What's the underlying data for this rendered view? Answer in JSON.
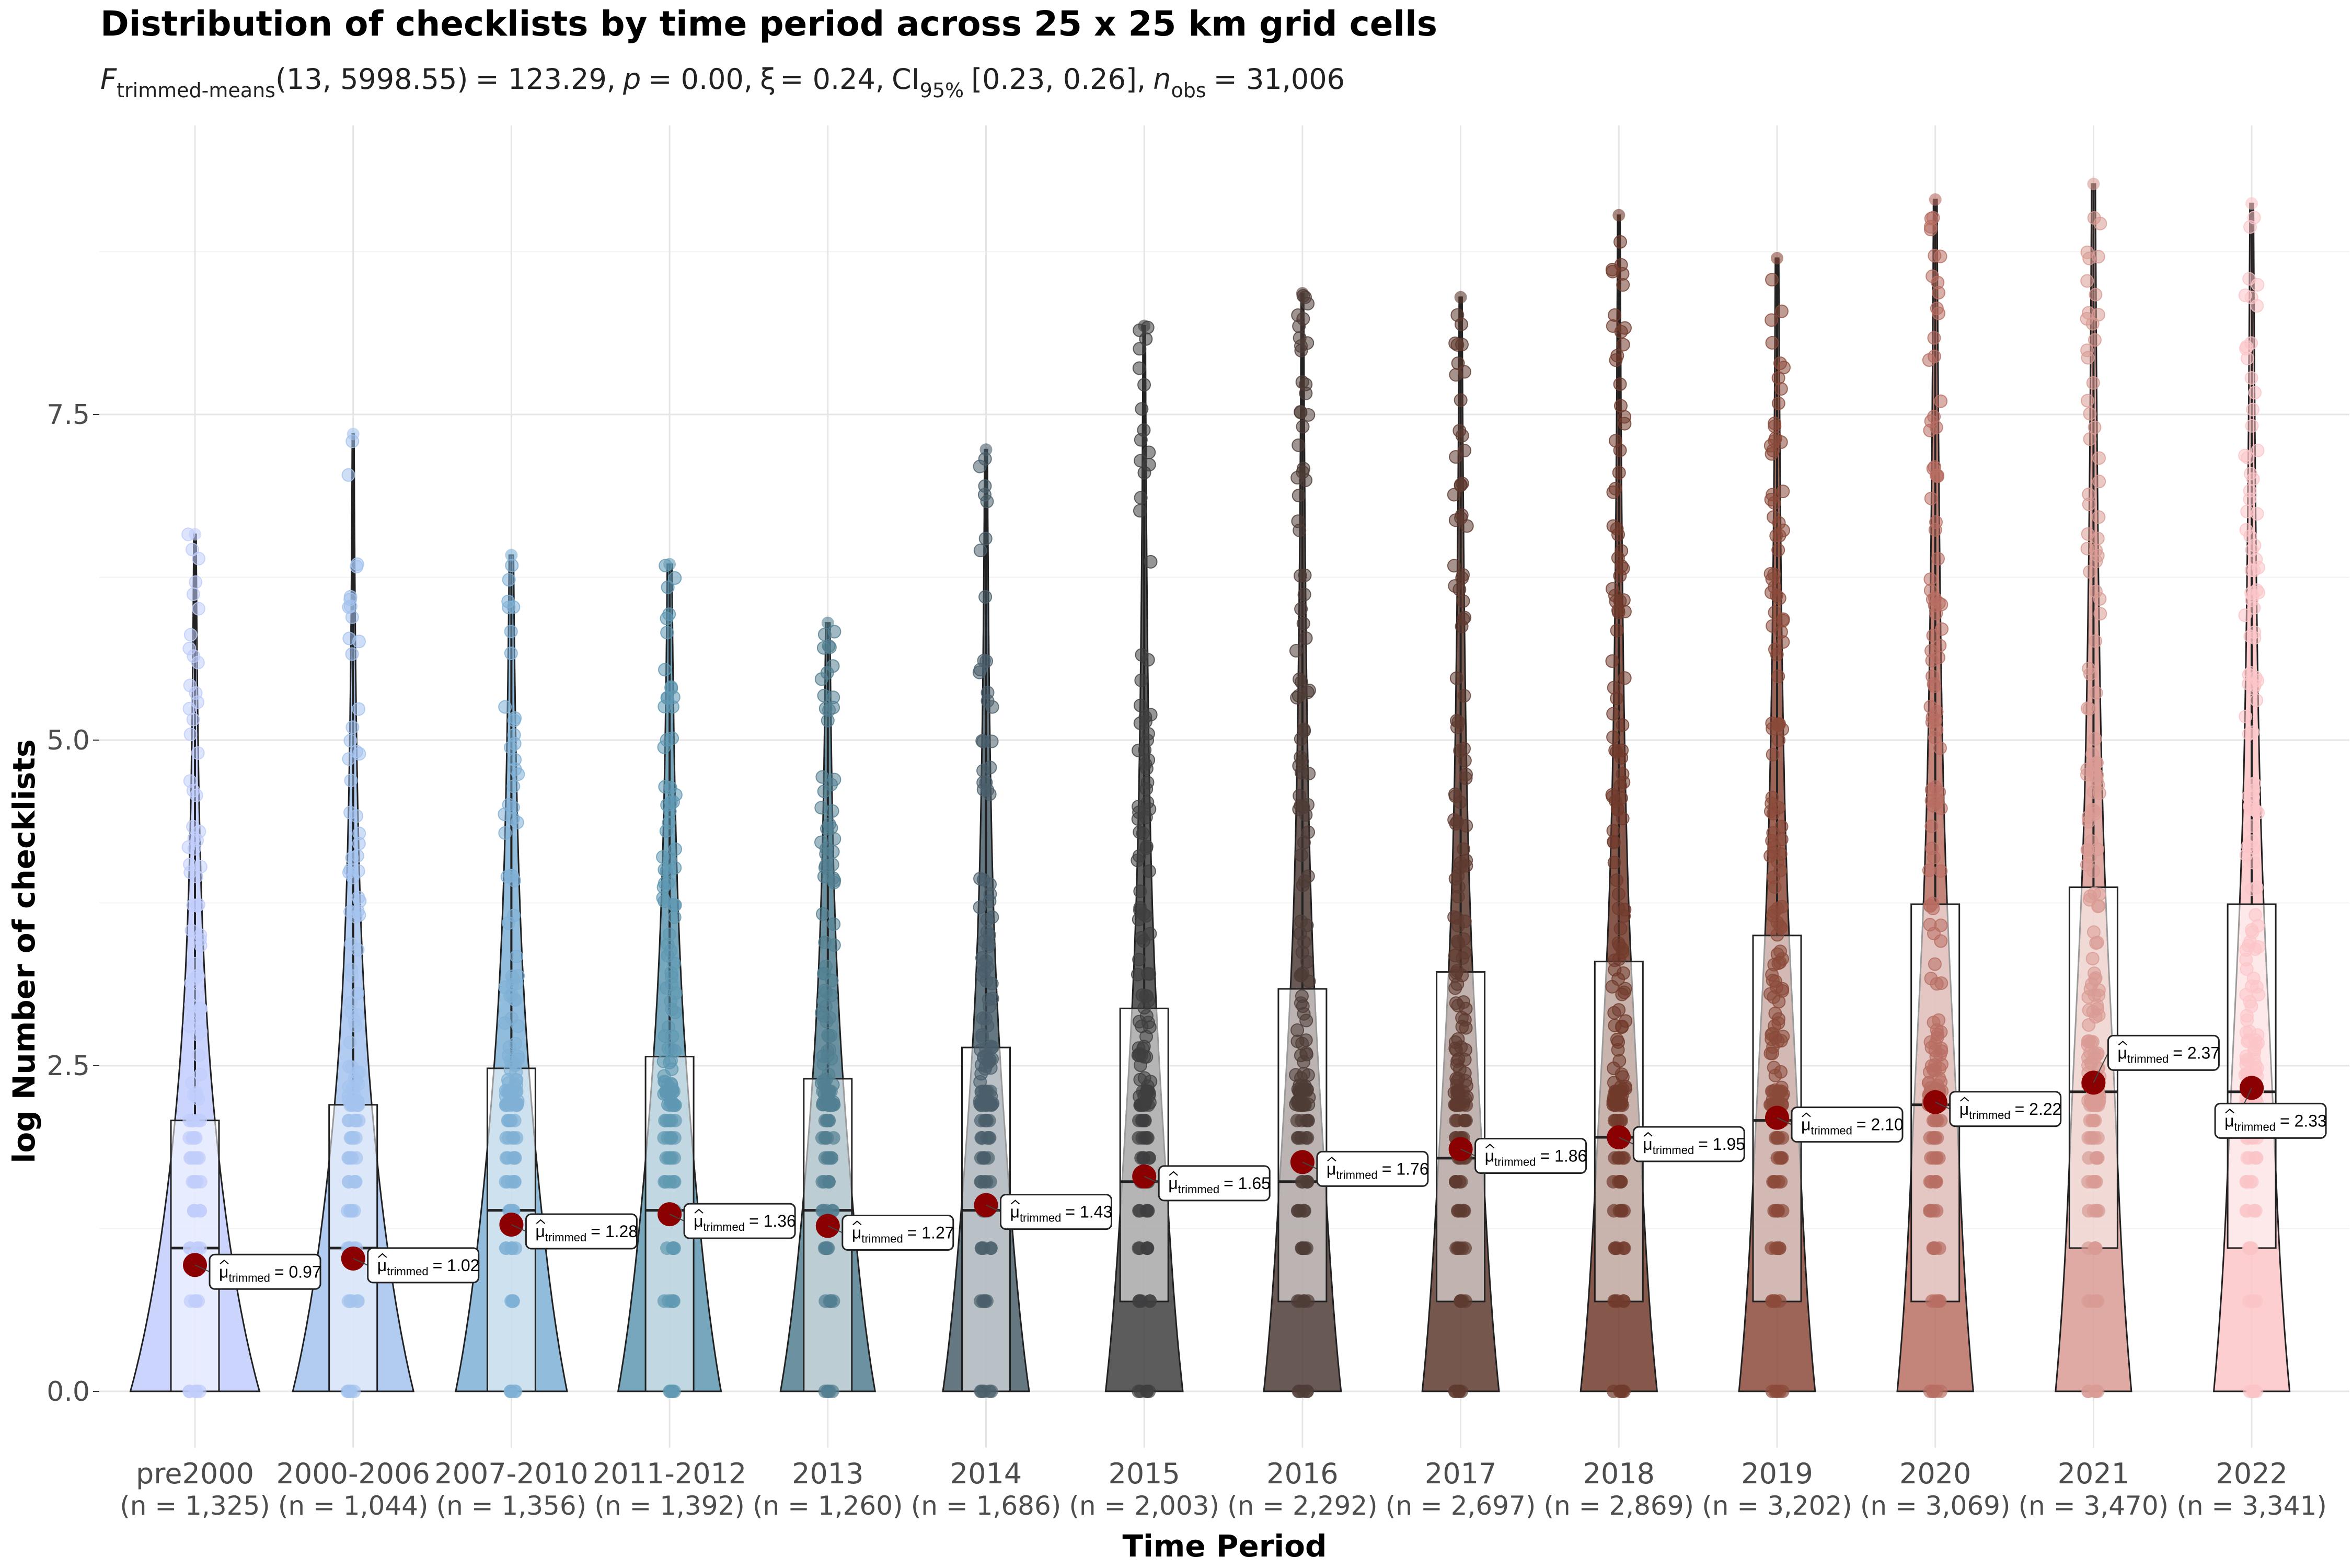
{
  "chart_data": {
    "type": "violin-box-scatter",
    "title": "Distribution of checklists by time period across 25 x 25 km grid cells",
    "subtitle": {
      "stat_name": "F",
      "stat_sub": "trimmed-means",
      "df": "(13, 5998.55)",
      "stat_value": "= 123.29,",
      "p_name": "p",
      "p_value": "= 0.00,",
      "effect_name": "ξ",
      "effect_value": "= 0.24,",
      "ci_name": "CI",
      "ci_sub": "95%",
      "ci_value": "[0.23, 0.26],",
      "n_name": "n",
      "n_sub": "obs",
      "n_value": "= 31,006"
    },
    "xlabel": "Time Period",
    "ylabel": "log Number of checklists",
    "ylim": [
      -0.35,
      9.75
    ],
    "yticks": [
      "0.0",
      "2.5",
      "5.0",
      "7.5"
    ],
    "grid": true,
    "mean_label_prefix": "μ",
    "mean_label_sub": "trimmed",
    "categories": [
      {
        "label": "pre2000",
        "n": "(n = 1,325)",
        "q1": 0,
        "median": 1.1,
        "q3": 2.08,
        "max": 6.58,
        "mean": 0.97,
        "mean_label": "= 0.97",
        "color": "#c1cdfb"
      },
      {
        "label": "2000-2006",
        "n": "(n = 1,044)",
        "q1": 0,
        "median": 1.1,
        "q3": 2.2,
        "max": 7.35,
        "mean": 1.02,
        "mean_label": "= 1.02",
        "color": "#a4c3ee"
      },
      {
        "label": "2007-2010",
        "n": "(n = 1,356)",
        "q1": 0,
        "median": 1.39,
        "q3": 2.48,
        "max": 6.42,
        "mean": 1.28,
        "mean_label": "= 1.28",
        "color": "#7fb0d6"
      },
      {
        "label": "2011-2012",
        "n": "(n = 1,392)",
        "q1": 0,
        "median": 1.39,
        "q3": 2.57,
        "max": 6.35,
        "mean": 1.36,
        "mean_label": "= 1.36",
        "color": "#5f98b2"
      },
      {
        "label": "2013",
        "n": "(n = 1,260)",
        "q1": 0,
        "median": 1.39,
        "q3": 2.4,
        "max": 5.9,
        "mean": 1.27,
        "mean_label": "= 1.27",
        "color": "#527f91"
      },
      {
        "label": "2014",
        "n": "(n = 1,686)",
        "q1": 0,
        "median": 1.39,
        "q3": 2.64,
        "max": 7.23,
        "mean": 1.43,
        "mean_label": "= 1.43",
        "color": "#4a5f6b"
      },
      {
        "label": "2015",
        "n": "(n = 2,003)",
        "q1": 0.69,
        "median": 1.61,
        "q3": 2.94,
        "max": 8.18,
        "mean": 1.65,
        "mean_label": "= 1.65",
        "color": "#3f3f40"
      },
      {
        "label": "2016",
        "n": "(n = 2,292)",
        "q1": 0.69,
        "median": 1.61,
        "q3": 3.09,
        "max": 8.43,
        "mean": 1.76,
        "mean_label": "= 1.76",
        "color": "#4e3c37"
      },
      {
        "label": "2017",
        "n": "(n = 2,697)",
        "q1": 0.69,
        "median": 1.79,
        "q3": 3.22,
        "max": 8.4,
        "mean": 1.86,
        "mean_label": "= 1.86",
        "color": "#5e3a2f"
      },
      {
        "label": "2018",
        "n": "(n = 2,869)",
        "q1": 0.69,
        "median": 1.95,
        "q3": 3.3,
        "max": 9.03,
        "mean": 1.95,
        "mean_label": "= 1.95",
        "color": "#713b2c"
      },
      {
        "label": "2019",
        "n": "(n = 3,202)",
        "q1": 0.69,
        "median": 2.08,
        "q3": 3.5,
        "max": 8.7,
        "mean": 2.1,
        "mean_label": "= 2.10",
        "color": "#8b4a3a"
      },
      {
        "label": "2020",
        "n": "(n = 3,069)",
        "q1": 0.69,
        "median": 2.2,
        "q3": 3.74,
        "max": 9.15,
        "mean": 2.22,
        "mean_label": "= 2.22",
        "color": "#b86e63"
      },
      {
        "label": "2021",
        "n": "(n = 3,470)",
        "q1": 1.1,
        "median": 2.3,
        "q3": 3.87,
        "max": 9.27,
        "mean": 2.37,
        "mean_label": "= 2.37",
        "color": "#d99b94"
      },
      {
        "label": "2022",
        "n": "(n = 3,341)",
        "q1": 1.1,
        "median": 2.3,
        "q3": 3.74,
        "max": 9.12,
        "mean": 2.33,
        "mean_label": "= 2.33",
        "color": "#fbc5c8"
      }
    ],
    "mean_point_color": "#8b0000"
  }
}
